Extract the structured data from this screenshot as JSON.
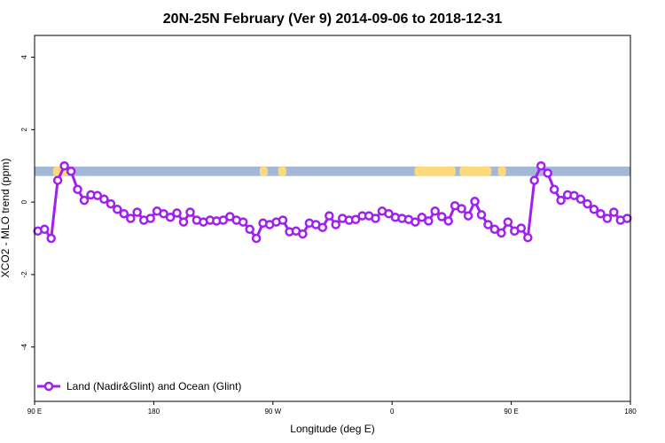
{
  "chart_data": {
    "type": "line",
    "title": "20N-25N February (Ver 9)   2014-09-06 to 2018-12-31",
    "xlabel": "Longitude (deg E)",
    "ylabel": "XCO2 - MLO trend (ppm)",
    "xlim": [
      90,
      540
    ],
    "ylim": [
      -5.5,
      4.6
    ],
    "x_ticks": [
      {
        "value": 90,
        "label": "90 E"
      },
      {
        "value": 180,
        "label": "180"
      },
      {
        "value": 270,
        "label": "90 W"
      },
      {
        "value": 360,
        "label": "0"
      },
      {
        "value": 450,
        "label": "90 E"
      },
      {
        "value": 540,
        "label": "180"
      }
    ],
    "y_ticks": [
      {
        "value": -4,
        "label": "-4"
      },
      {
        "value": -2,
        "label": "-2"
      },
      {
        "value": 0,
        "label": "0"
      },
      {
        "value": 2,
        "label": "2"
      },
      {
        "value": 4,
        "label": "4"
      }
    ],
    "grid": false,
    "legend_position": "bottom-left",
    "map_band": {
      "y_range": [
        0.72,
        0.98
      ],
      "ocean_color": "#a3b8d6",
      "land_color": "#fcd97a",
      "land_segments": [
        [
          104,
          116
        ],
        [
          260,
          266
        ],
        [
          274,
          280
        ],
        [
          377,
          408
        ],
        [
          411,
          435
        ],
        [
          440,
          446
        ]
      ]
    },
    "series": [
      {
        "name": "Land (Nadir&Glint) and Ocean (Glint)",
        "color": "#a020f0",
        "x": [
          92.5,
          97.5,
          102.5,
          107.5,
          112.5,
          117.5,
          122.5,
          127.5,
          132.5,
          137.5,
          142.5,
          147.5,
          152.5,
          157.5,
          162.5,
          167.5,
          172.5,
          177.5,
          182.5,
          187.5,
          192.5,
          197.5,
          202.5,
          207.5,
          212.5,
          217.5,
          222.5,
          227.5,
          232.5,
          237.5,
          242.5,
          247.5,
          252.5,
          257.5,
          262.5,
          267.5,
          272.5,
          277.5,
          282.5,
          287.5,
          292.5,
          297.5,
          302.5,
          307.5,
          312.5,
          317.5,
          322.5,
          327.5,
          332.5,
          337.5,
          342.5,
          347.5,
          352.5,
          357.5,
          362.5,
          367.5,
          372.5,
          377.5,
          382.5,
          387.5,
          392.5,
          397.5,
          402.5,
          407.5,
          412.5,
          417.5,
          422.5,
          427.5,
          432.5,
          437.5,
          442.5,
          447.5,
          452.5,
          457.5,
          462.5,
          467.5,
          472.5,
          477.5,
          482.5,
          487.5,
          492.5,
          497.5,
          502.5,
          507.5,
          512.5,
          517.5,
          522.5,
          527.5,
          532.5,
          537.5
        ],
        "values": [
          -0.8,
          -0.75,
          -1.0,
          0.6,
          1.0,
          0.85,
          0.35,
          0.05,
          0.2,
          0.18,
          0.08,
          -0.05,
          -0.2,
          -0.32,
          -0.45,
          -0.28,
          -0.5,
          -0.45,
          -0.25,
          -0.32,
          -0.42,
          -0.3,
          -0.55,
          -0.28,
          -0.5,
          -0.55,
          -0.5,
          -0.52,
          -0.5,
          -0.4,
          -0.5,
          -0.55,
          -0.75,
          -1.0,
          -0.58,
          -0.62,
          -0.55,
          -0.5,
          -0.82,
          -0.8,
          -0.88,
          -0.58,
          -0.62,
          -0.7,
          -0.38,
          -0.62,
          -0.45,
          -0.5,
          -0.48,
          -0.38,
          -0.38,
          -0.45,
          -0.25,
          -0.32,
          -0.42,
          -0.45,
          -0.48,
          -0.55,
          -0.42,
          -0.52,
          -0.25,
          -0.4,
          -0.52,
          -0.1,
          -0.18,
          -0.38,
          0.02,
          -0.35,
          -0.62,
          -0.75,
          -0.85,
          -0.55,
          -0.8,
          -0.72,
          -0.98,
          0.6,
          1.0,
          0.8,
          0.35,
          0.05,
          0.2,
          0.18,
          0.08,
          -0.05,
          -0.2,
          -0.32,
          -0.45,
          -0.28,
          -0.5,
          -0.45
        ]
      }
    ]
  }
}
